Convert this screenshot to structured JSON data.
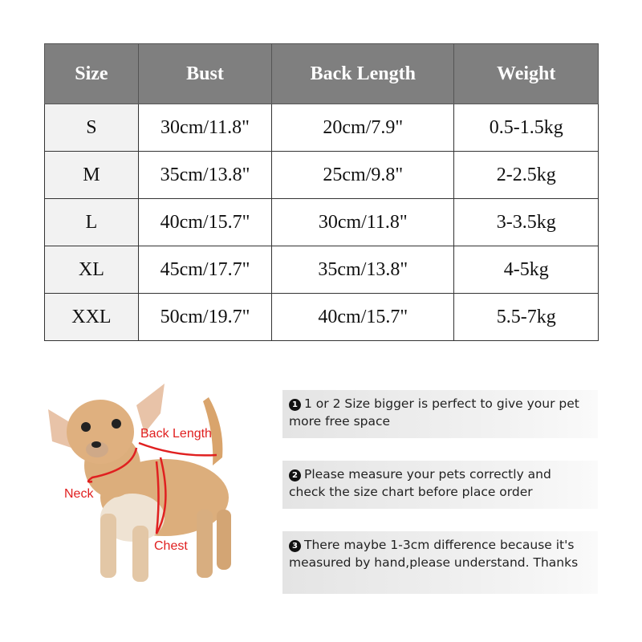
{
  "table": {
    "headers": [
      "Size",
      "Bust",
      "Back Length",
      "Weight"
    ],
    "rows": [
      [
        "S",
        "30cm/11.8\"",
        "20cm/7.9\"",
        "0.5-1.5kg"
      ],
      [
        "M",
        "35cm/13.8\"",
        "25cm/9.8\"",
        "2-2.5kg"
      ],
      [
        "L",
        "40cm/15.7\"",
        "30cm/11.8\"",
        "3-3.5kg"
      ],
      [
        "XL",
        "45cm/17.7\"",
        "35cm/13.8\"",
        "4-5kg"
      ],
      [
        "XXL",
        "50cm/19.7\"",
        "40cm/15.7\"",
        "5.5-7kg"
      ]
    ]
  },
  "diagram": {
    "labels": {
      "back_length": "Back Length",
      "neck": "Neck",
      "chest": "Chest"
    },
    "label_color": "#e02020"
  },
  "notes": [
    {
      "number": "1",
      "text": "1 or 2 Size bigger is perfect to give your pet more free space"
    },
    {
      "number": "2",
      "text": "Please measure your pets correctly and check the size chart before place order"
    },
    {
      "number": "3",
      "text": "There maybe 1-3cm difference because it's measured by hand,please understand. Thanks"
    }
  ]
}
